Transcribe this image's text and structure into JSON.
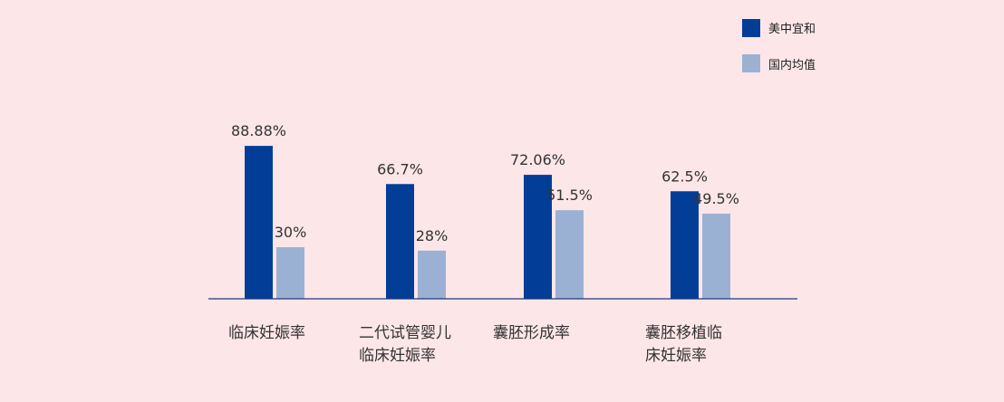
{
  "chart_data": {
    "type": "bar",
    "categories": [
      [
        "临床妊娠率"
      ],
      [
        "二代试管婴儿",
        "临床妊娠率"
      ],
      [
        "囊胚形成率"
      ],
      [
        "囊胚移植临",
        "床妊娠率"
      ]
    ],
    "series": [
      {
        "name": "美中宜和",
        "color": "#023e98",
        "values": [
          88.88,
          66.7,
          72.06,
          62.5
        ],
        "labels": [
          "88.88%",
          "66.7%",
          "72.06%",
          "62.5%"
        ]
      },
      {
        "name": "国内均值",
        "color": "#9bb1d4",
        "values": [
          30,
          28,
          51.5,
          49.5
        ],
        "labels": [
          "30%",
          "28%",
          "51.5%",
          "49.5%"
        ]
      }
    ],
    "ylim": [
      0,
      100
    ],
    "grid": false,
    "legend": "top-right",
    "axis_color": "#1f3a7a"
  }
}
